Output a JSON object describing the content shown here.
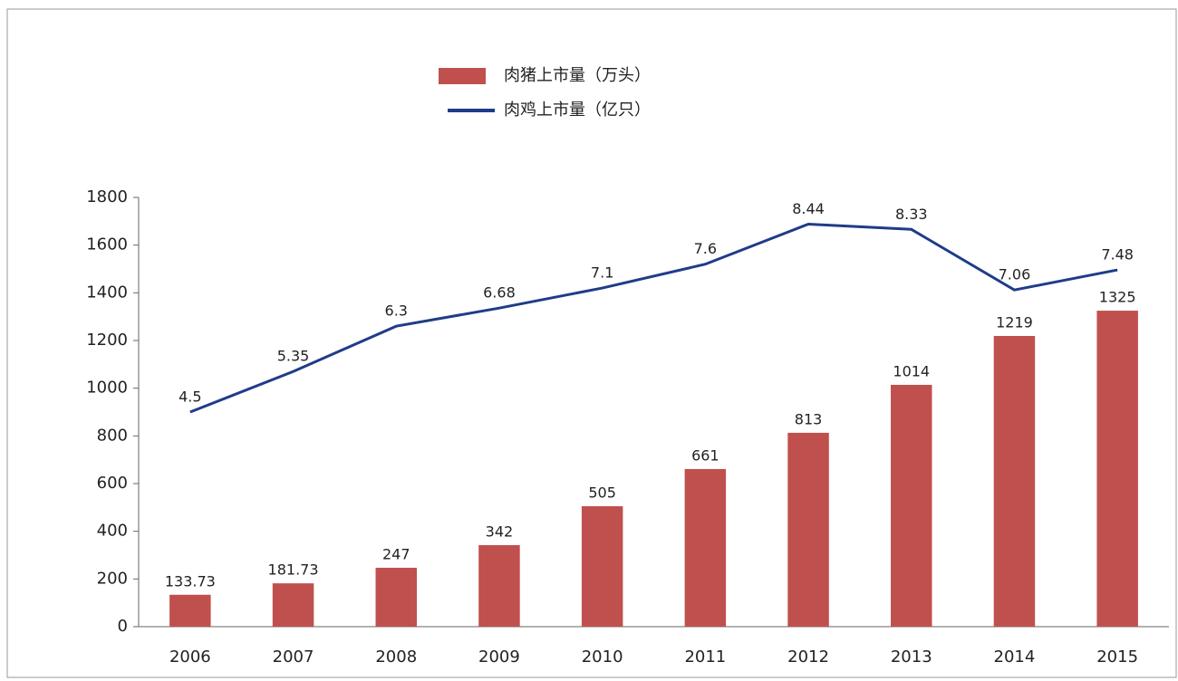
{
  "chart_data": {
    "type": "bar-line",
    "categories": [
      "2006",
      "2007",
      "2008",
      "2009",
      "2010",
      "2011",
      "2012",
      "2013",
      "2014",
      "2015"
    ],
    "series": [
      {
        "name": "肉猪上市量（万头）",
        "type": "bar",
        "color": "#c0504d",
        "values": [
          133.73,
          181.73,
          247,
          342,
          505,
          661,
          813,
          1014,
          1219,
          1325
        ]
      },
      {
        "name": "肉鸡上市量（亿只）",
        "type": "line",
        "axis": "y2",
        "color": "#1f3c88",
        "values": [
          4.5,
          5.35,
          6.3,
          6.68,
          7.1,
          7.6,
          8.44,
          8.33,
          7.06,
          7.48
        ]
      }
    ],
    "ylim": [
      0,
      1800
    ],
    "yticks": [
      0,
      200,
      400,
      600,
      800,
      1000,
      1200,
      1400,
      1600,
      1800
    ],
    "y2lim": [
      0,
      9
    ]
  }
}
